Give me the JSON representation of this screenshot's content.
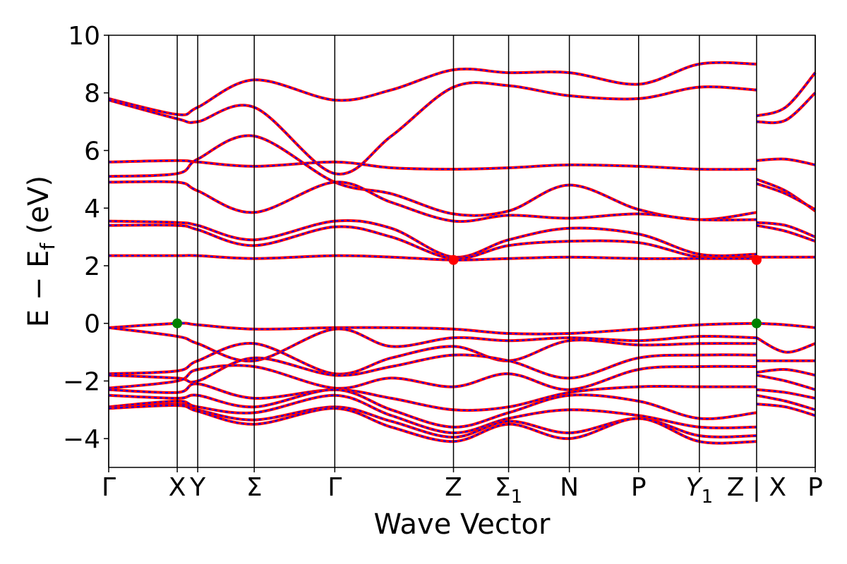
{
  "chart_data": {
    "type": "line",
    "title": "",
    "xlabel": "Wave Vector",
    "ylabel": {
      "main": "E − E",
      "sub": "f",
      "unit": " (eV)"
    },
    "ylim": [
      -5,
      10
    ],
    "yticks": [
      -4,
      -2,
      0,
      2,
      4,
      6,
      8,
      10
    ],
    "ytick_labels": [
      "−4",
      "−2",
      "0",
      "2",
      "4",
      "6",
      "8",
      "10"
    ],
    "xlim": [
      0,
      1
    ],
    "kpoints": [
      {
        "label": "Γ",
        "x": 0.0
      },
      {
        "label": "X",
        "x": 0.097
      },
      {
        "label": "Y",
        "x": 0.126
      },
      {
        "label": "Σ",
        "x": 0.206
      },
      {
        "label": "Γ",
        "x": 0.32
      },
      {
        "label": "Z",
        "x": 0.488
      },
      {
        "label": "Σ",
        "sub": "1",
        "x": 0.566
      },
      {
        "label": "N",
        "x": 0.652
      },
      {
        "label": "P",
        "x": 0.75
      },
      {
        "label": "Y",
        "sub": "1",
        "italic": true,
        "x": 0.836
      },
      {
        "label": "Z | X",
        "x": 0.917
      },
      {
        "label": "P",
        "x": 1.0
      }
    ],
    "legend": "none",
    "grid": false,
    "series_styles": [
      {
        "color": "#0000ff",
        "style": "dashed"
      },
      {
        "color": "#ff0000",
        "style": "solid"
      }
    ],
    "bands": [
      [
        [
          0,
          7.8
        ],
        [
          0.097,
          7.25
        ],
        [
          0.126,
          7.5
        ],
        [
          0.206,
          8.45
        ],
        [
          0.32,
          7.75
        ],
        [
          0.4,
          8.1
        ],
        [
          0.488,
          8.8
        ],
        [
          0.566,
          8.7
        ],
        [
          0.652,
          8.7
        ],
        [
          0.75,
          8.3
        ],
        [
          0.836,
          9.0
        ],
        [
          0.917,
          9.0
        ]
      ],
      [
        [
          0,
          7.75
        ],
        [
          0.097,
          7.1
        ],
        [
          0.126,
          7.0
        ],
        [
          0.206,
          7.5
        ],
        [
          0.32,
          5.2
        ],
        [
          0.4,
          6.5
        ],
        [
          0.488,
          8.2
        ],
        [
          0.566,
          8.25
        ],
        [
          0.652,
          7.9
        ],
        [
          0.75,
          7.8
        ],
        [
          0.836,
          8.2
        ],
        [
          0.917,
          8.1
        ]
      ],
      [
        [
          0,
          5.6
        ],
        [
          0.097,
          5.65
        ],
        [
          0.126,
          5.6
        ],
        [
          0.206,
          5.45
        ],
        [
          0.32,
          5.6
        ],
        [
          0.4,
          5.4
        ],
        [
          0.488,
          5.35
        ],
        [
          0.566,
          5.4
        ],
        [
          0.652,
          5.5
        ],
        [
          0.75,
          5.45
        ],
        [
          0.836,
          5.35
        ],
        [
          0.917,
          5.35
        ]
      ],
      [
        [
          0,
          5.1
        ],
        [
          0.097,
          5.2
        ],
        [
          0.126,
          5.7
        ],
        [
          0.206,
          6.5
        ],
        [
          0.32,
          4.9
        ],
        [
          0.4,
          4.5
        ],
        [
          0.488,
          3.8
        ],
        [
          0.566,
          3.9
        ],
        [
          0.652,
          4.8
        ],
        [
          0.75,
          3.95
        ],
        [
          0.836,
          3.6
        ],
        [
          0.917,
          3.85
        ]
      ],
      [
        [
          0,
          4.9
        ],
        [
          0.097,
          4.9
        ],
        [
          0.126,
          4.6
        ],
        [
          0.206,
          3.85
        ],
        [
          0.32,
          4.9
        ],
        [
          0.4,
          4.2
        ],
        [
          0.488,
          3.55
        ],
        [
          0.566,
          3.75
        ],
        [
          0.652,
          3.65
        ],
        [
          0.75,
          3.8
        ],
        [
          0.836,
          3.6
        ],
        [
          0.917,
          3.6
        ]
      ],
      [
        [
          0,
          3.55
        ],
        [
          0.097,
          3.5
        ],
        [
          0.126,
          3.4
        ],
        [
          0.206,
          2.9
        ],
        [
          0.32,
          3.55
        ],
        [
          0.4,
          3.3
        ],
        [
          0.488,
          2.3
        ],
        [
          0.566,
          2.9
        ],
        [
          0.652,
          3.3
        ],
        [
          0.75,
          3.1
        ],
        [
          0.836,
          2.4
        ],
        [
          0.917,
          2.4
        ]
      ],
      [
        [
          0,
          3.4
        ],
        [
          0.097,
          3.4
        ],
        [
          0.126,
          3.25
        ],
        [
          0.206,
          2.7
        ],
        [
          0.32,
          3.35
        ],
        [
          0.4,
          3.0
        ],
        [
          0.488,
          2.25
        ],
        [
          0.566,
          2.7
        ],
        [
          0.652,
          2.85
        ],
        [
          0.75,
          2.8
        ],
        [
          0.836,
          2.3
        ],
        [
          0.917,
          2.3
        ]
      ],
      [
        [
          0,
          2.35
        ],
        [
          0.097,
          2.35
        ],
        [
          0.126,
          2.35
        ],
        [
          0.206,
          2.25
        ],
        [
          0.32,
          2.35
        ],
        [
          0.4,
          2.3
        ],
        [
          0.488,
          2.2
        ],
        [
          0.566,
          2.25
        ],
        [
          0.652,
          2.3
        ],
        [
          0.75,
          2.25
        ],
        [
          0.836,
          2.25
        ],
        [
          0.917,
          2.25
        ]
      ],
      [
        [
          0,
          -0.15
        ],
        [
          0.097,
          0.0
        ],
        [
          0.126,
          -0.05
        ],
        [
          0.206,
          -0.2
        ],
        [
          0.32,
          -0.15
        ],
        [
          0.4,
          -0.15
        ],
        [
          0.488,
          -0.2
        ],
        [
          0.566,
          -0.35
        ],
        [
          0.652,
          -0.35
        ],
        [
          0.75,
          -0.2
        ],
        [
          0.836,
          -0.05
        ],
        [
          0.917,
          0.0
        ]
      ],
      [
        [
          0,
          -0.15
        ],
        [
          0.097,
          -0.45
        ],
        [
          0.126,
          -0.7
        ],
        [
          0.206,
          -1.3
        ],
        [
          0.32,
          -0.2
        ],
        [
          0.4,
          -0.8
        ],
        [
          0.488,
          -0.5
        ],
        [
          0.566,
          -0.6
        ],
        [
          0.652,
          -0.5
        ],
        [
          0.75,
          -0.6
        ],
        [
          0.836,
          -0.45
        ],
        [
          0.917,
          -0.5
        ]
      ],
      [
        [
          0,
          -1.75
        ],
        [
          0.097,
          -1.65
        ],
        [
          0.126,
          -1.3
        ],
        [
          0.206,
          -0.7
        ],
        [
          0.32,
          -1.75
        ],
        [
          0.4,
          -1.2
        ],
        [
          0.488,
          -0.8
        ],
        [
          0.566,
          -1.3
        ],
        [
          0.652,
          -0.6
        ],
        [
          0.75,
          -0.75
        ],
        [
          0.836,
          -0.7
        ],
        [
          0.917,
          -0.7
        ]
      ],
      [
        [
          0,
          -1.8
        ],
        [
          0.097,
          -1.9
        ],
        [
          0.126,
          -2.0
        ],
        [
          0.206,
          -1.2
        ],
        [
          0.32,
          -1.8
        ],
        [
          0.4,
          -1.5
        ],
        [
          0.488,
          -1.1
        ],
        [
          0.566,
          -1.3
        ],
        [
          0.652,
          -1.9
        ],
        [
          0.75,
          -1.2
        ],
        [
          0.836,
          -1.1
        ],
        [
          0.917,
          -1.1
        ]
      ],
      [
        [
          0,
          -2.25
        ],
        [
          0.097,
          -2.0
        ],
        [
          0.126,
          -1.6
        ],
        [
          0.206,
          -1.5
        ],
        [
          0.32,
          -2.25
        ],
        [
          0.4,
          -1.9
        ],
        [
          0.488,
          -2.2
        ],
        [
          0.566,
          -1.75
        ],
        [
          0.652,
          -2.3
        ],
        [
          0.75,
          -1.6
        ],
        [
          0.836,
          -1.5
        ],
        [
          0.917,
          -1.5
        ]
      ],
      [
        [
          0,
          -2.3
        ],
        [
          0.097,
          -2.4
        ],
        [
          0.126,
          -2.1
        ],
        [
          0.206,
          -2.6
        ],
        [
          0.32,
          -2.3
        ],
        [
          0.4,
          -2.6
        ],
        [
          0.488,
          -3.0
        ],
        [
          0.566,
          -2.9
        ],
        [
          0.652,
          -2.4
        ],
        [
          0.75,
          -2.2
        ],
        [
          0.836,
          -2.2
        ],
        [
          0.917,
          -2.2
        ]
      ],
      [
        [
          0,
          -2.5
        ],
        [
          0.097,
          -2.6
        ],
        [
          0.126,
          -2.5
        ],
        [
          0.206,
          -2.9
        ],
        [
          0.32,
          -2.3
        ],
        [
          0.4,
          -3.0
        ],
        [
          0.488,
          -3.6
        ],
        [
          0.566,
          -3.1
        ],
        [
          0.652,
          -2.5
        ],
        [
          0.75,
          -2.7
        ],
        [
          0.836,
          -3.3
        ],
        [
          0.917,
          -3.1
        ]
      ],
      [
        [
          0,
          -2.9
        ],
        [
          0.097,
          -2.7
        ],
        [
          0.126,
          -2.9
        ],
        [
          0.206,
          -3.1
        ],
        [
          0.32,
          -2.5
        ],
        [
          0.4,
          -3.2
        ],
        [
          0.488,
          -3.8
        ],
        [
          0.566,
          -3.3
        ],
        [
          0.652,
          -3.0
        ],
        [
          0.75,
          -3.2
        ],
        [
          0.836,
          -3.6
        ],
        [
          0.917,
          -3.6
        ]
      ],
      [
        [
          0,
          -2.95
        ],
        [
          0.097,
          -2.8
        ],
        [
          0.126,
          -3.0
        ],
        [
          0.206,
          -3.35
        ],
        [
          0.32,
          -2.9
        ],
        [
          0.4,
          -3.4
        ],
        [
          0.488,
          -3.95
        ],
        [
          0.566,
          -3.4
        ],
        [
          0.652,
          -3.8
        ],
        [
          0.75,
          -3.3
        ],
        [
          0.836,
          -3.9
        ],
        [
          0.917,
          -3.9
        ]
      ],
      [
        [
          0,
          -2.95
        ],
        [
          0.097,
          -2.85
        ],
        [
          0.126,
          -3.05
        ],
        [
          0.206,
          -3.5
        ],
        [
          0.32,
          -2.95
        ],
        [
          0.4,
          -3.6
        ],
        [
          0.488,
          -4.1
        ],
        [
          0.566,
          -3.5
        ],
        [
          0.652,
          -4.0
        ],
        [
          0.75,
          -3.3
        ],
        [
          0.836,
          -4.1
        ],
        [
          0.917,
          -4.1
        ]
      ],
      [
        [
          0.917,
          7.2
        ],
        [
          0.958,
          7.5
        ],
        [
          1.0,
          8.7
        ]
      ],
      [
        [
          0.917,
          7.0
        ],
        [
          0.958,
          7.05
        ],
        [
          1.0,
          8.0
        ]
      ],
      [
        [
          0.917,
          5.65
        ],
        [
          0.958,
          5.7
        ],
        [
          1.0,
          5.5
        ]
      ],
      [
        [
          0.917,
          5.0
        ],
        [
          0.958,
          4.6
        ],
        [
          1.0,
          3.9
        ]
      ],
      [
        [
          0.917,
          4.85
        ],
        [
          0.958,
          4.5
        ],
        [
          1.0,
          3.95
        ]
      ],
      [
        [
          0.917,
          3.5
        ],
        [
          0.958,
          3.4
        ],
        [
          1.0,
          3.0
        ]
      ],
      [
        [
          0.917,
          3.4
        ],
        [
          0.958,
          3.2
        ],
        [
          1.0,
          2.85
        ]
      ],
      [
        [
          0.917,
          2.3
        ],
        [
          0.958,
          2.3
        ],
        [
          1.0,
          2.3
        ]
      ],
      [
        [
          0.917,
          0.0
        ],
        [
          0.958,
          -0.05
        ],
        [
          1.0,
          -0.15
        ]
      ],
      [
        [
          0.917,
          -0.5
        ],
        [
          0.958,
          -1.0
        ],
        [
          1.0,
          -0.7
        ]
      ],
      [
        [
          0.917,
          -1.3
        ],
        [
          0.958,
          -1.3
        ],
        [
          1.0,
          -1.3
        ]
      ],
      [
        [
          0.917,
          -1.7
        ],
        [
          0.958,
          -1.6
        ],
        [
          1.0,
          -1.8
        ]
      ],
      [
        [
          0.917,
          -1.8
        ],
        [
          0.958,
          -2.0
        ],
        [
          1.0,
          -2.3
        ]
      ],
      [
        [
          0.917,
          -2.3
        ],
        [
          0.958,
          -2.4
        ],
        [
          1.0,
          -2.6
        ]
      ],
      [
        [
          0.917,
          -2.5
        ],
        [
          0.958,
          -2.7
        ],
        [
          1.0,
          -3.0
        ]
      ],
      [
        [
          0.917,
          -2.8
        ],
        [
          0.958,
          -2.9
        ],
        [
          1.0,
          -3.2
        ]
      ]
    ],
    "markers": [
      {
        "name": "vbm-marker",
        "x": 0.097,
        "y": 0.0,
        "color": "#008000"
      },
      {
        "name": "vbm-marker",
        "x": 0.917,
        "y": 0.0,
        "color": "#008000"
      },
      {
        "name": "cbm-marker",
        "x": 0.488,
        "y": 2.2,
        "color": "#ff0000"
      },
      {
        "name": "cbm-marker",
        "x": 0.917,
        "y": 2.2,
        "color": "#ff0000"
      }
    ]
  }
}
